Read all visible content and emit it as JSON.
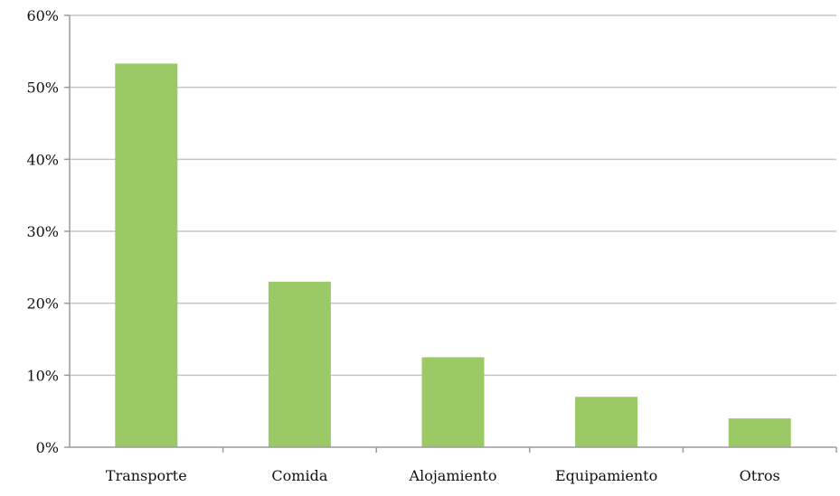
{
  "chart_data": {
    "type": "bar",
    "categories": [
      "Transporte",
      "Comida",
      "Alojamiento",
      "Equipamiento",
      "Otros"
    ],
    "values": [
      53.3,
      23.0,
      12.5,
      7.0,
      4.0
    ],
    "unit": "%",
    "yticks": [
      "0%",
      "10%",
      "20%",
      "30%",
      "40%",
      "50%",
      "60%"
    ],
    "ylim": [
      0,
      60
    ],
    "grid": true,
    "legend": "none",
    "bar_color": "#9bc966",
    "grid_color": "#c6c6c6",
    "axis_color": "#9a9a9a"
  }
}
